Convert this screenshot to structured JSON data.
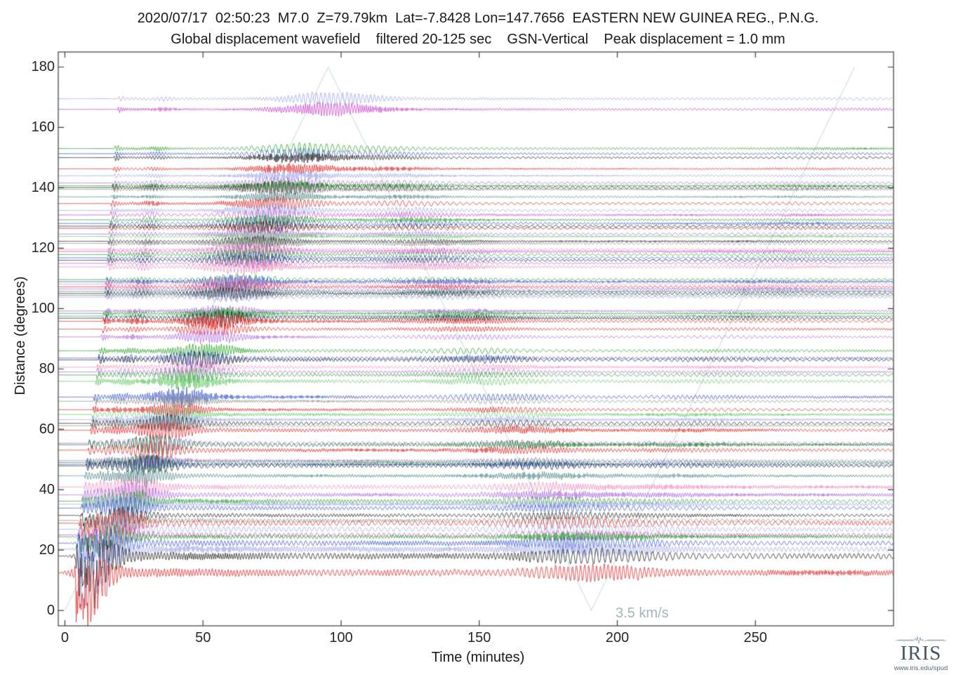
{
  "title_line1": "2020/07/17  02:50:23  M7.0  Z=79.79km  Lat=-7.8428 Lon=147.7656  EASTERN NEW GUINEA REG., P.N.G.",
  "title_line2": "Global displacement wavefield    filtered 20-125 sec    GSN-Vertical    Peak displacement = 1.0 mm",
  "event": {
    "date": "2020/07/17",
    "time": "02:50:23",
    "magnitude": "M7.0",
    "depth": "Z=79.79km",
    "latitude": "Lat=-7.8428",
    "longitude": "Lon=147.7656",
    "region": "EASTERN NEW GUINEA REG., P.N.G."
  },
  "subtitle_parts": {
    "wavefield": "Global displacement wavefield",
    "filter": "filtered 20-125 sec",
    "channel": "GSN-Vertical",
    "peak": "Peak displacement = 1.0 mm"
  },
  "chart_data": {
    "type": "line",
    "variant": "seismic-record-section",
    "title": "Global displacement wavefield",
    "xlabel": "Time (minutes)",
    "ylabel": "Distance (degrees)",
    "xlim": [
      -2.4,
      300
    ],
    "ylim": [
      -5.1,
      185
    ],
    "x_ticks": [
      0,
      50,
      100,
      150,
      200,
      250
    ],
    "y_ticks": [
      0,
      20,
      40,
      60,
      80,
      100,
      120,
      140,
      160,
      180
    ],
    "grid": false,
    "legend": "none",
    "frame_color": "#3c3c3c",
    "reference_line": {
      "label": "3.5 km/s",
      "color": "#cfdede",
      "label_color": "#a2b7b7",
      "velocity_min_per_deg": 0.5295,
      "vertices_time_deg": [
        [
          0,
          0
        ],
        [
          95.3,
          180
        ],
        [
          190.6,
          0
        ],
        [
          285.9,
          180
        ]
      ]
    },
    "palette": {
      "k": "#1c1c1c",
      "r": "#dd2222",
      "dr": "#aa1515",
      "g": "#1fa01f",
      "lg": "#5ec45e",
      "dg": "#157a25",
      "b": "#3352c8",
      "pw": "#9aa2ea",
      "m": "#c93cc9",
      "v": "#a95fe0",
      "pk": "#ee85b8",
      "gy": "#8a8a8a",
      "tl": "#4d8585",
      "sl": "#6d7d8d"
    },
    "traces": [
      [
        169.5,
        "pw"
      ],
      [
        166.0,
        "m"
      ],
      [
        153.0,
        "g"
      ],
      [
        151.3,
        "b"
      ],
      [
        150.0,
        "k"
      ],
      [
        146.3,
        "r"
      ],
      [
        144.0,
        "pw"
      ],
      [
        141.6,
        "v"
      ],
      [
        140.7,
        "g"
      ],
      [
        140.1,
        "k"
      ],
      [
        139.5,
        "gy"
      ],
      [
        137.0,
        "tl"
      ],
      [
        134.8,
        "r"
      ],
      [
        132.5,
        "pw"
      ],
      [
        131.0,
        "m"
      ],
      [
        129.4,
        "g"
      ],
      [
        128.2,
        "b"
      ],
      [
        127.3,
        "k"
      ],
      [
        126.6,
        "dr"
      ],
      [
        124.7,
        "v"
      ],
      [
        123.9,
        "lg"
      ],
      [
        122.3,
        "k"
      ],
      [
        121.6,
        "gy"
      ],
      [
        119.6,
        "pk"
      ],
      [
        118.9,
        "m"
      ],
      [
        117.9,
        "g"
      ],
      [
        116.8,
        "b"
      ],
      [
        116.0,
        "k"
      ],
      [
        115.0,
        "v"
      ],
      [
        113.8,
        "pk"
      ],
      [
        109.6,
        "g"
      ],
      [
        108.9,
        "b"
      ],
      [
        108.1,
        "pk"
      ],
      [
        107.2,
        "r"
      ],
      [
        106.5,
        "v"
      ],
      [
        105.7,
        "tl"
      ],
      [
        105.0,
        "k"
      ],
      [
        104.4,
        "sl"
      ],
      [
        103.8,
        "pw"
      ],
      [
        99.2,
        "v"
      ],
      [
        98.4,
        "g"
      ],
      [
        97.5,
        "tl"
      ],
      [
        96.8,
        "k"
      ],
      [
        95.8,
        "r"
      ],
      [
        93.2,
        "r"
      ],
      [
        90.6,
        "v"
      ],
      [
        86.0,
        "g"
      ],
      [
        83.6,
        "b"
      ],
      [
        83.0,
        "k"
      ],
      [
        80.6,
        "pk"
      ],
      [
        79.0,
        "v"
      ],
      [
        78.0,
        "g"
      ],
      [
        75.9,
        "lg"
      ],
      [
        70.7,
        "b"
      ],
      [
        69.3,
        "gy"
      ],
      [
        66.5,
        "r"
      ],
      [
        64.9,
        "lg"
      ],
      [
        63.2,
        "pw"
      ],
      [
        62.0,
        "k"
      ],
      [
        61.2,
        "gy"
      ],
      [
        59.7,
        "r"
      ],
      [
        55.4,
        "v"
      ],
      [
        54.9,
        "dg"
      ],
      [
        53.1,
        "r"
      ],
      [
        49.6,
        "v"
      ],
      [
        49.0,
        "g"
      ],
      [
        48.4,
        "b"
      ],
      [
        47.9,
        "k"
      ],
      [
        44.6,
        "tl"
      ],
      [
        40.9,
        "pk"
      ],
      [
        38.3,
        "v"
      ],
      [
        36.2,
        "g"
      ],
      [
        35.2,
        "pw"
      ],
      [
        33.9,
        "b"
      ],
      [
        31.5,
        "k"
      ],
      [
        29.8,
        "gy"
      ],
      [
        28.9,
        "r"
      ],
      [
        26.9,
        "pw"
      ],
      [
        25.0,
        "m"
      ],
      [
        24.4,
        "g"
      ],
      [
        22.3,
        "b"
      ],
      [
        20.3,
        "pw"
      ],
      [
        18.0,
        "k"
      ],
      [
        12.5,
        "r"
      ]
    ]
  },
  "logo": {
    "text": "IRIS",
    "url": "www.iris.edu/spud"
  }
}
